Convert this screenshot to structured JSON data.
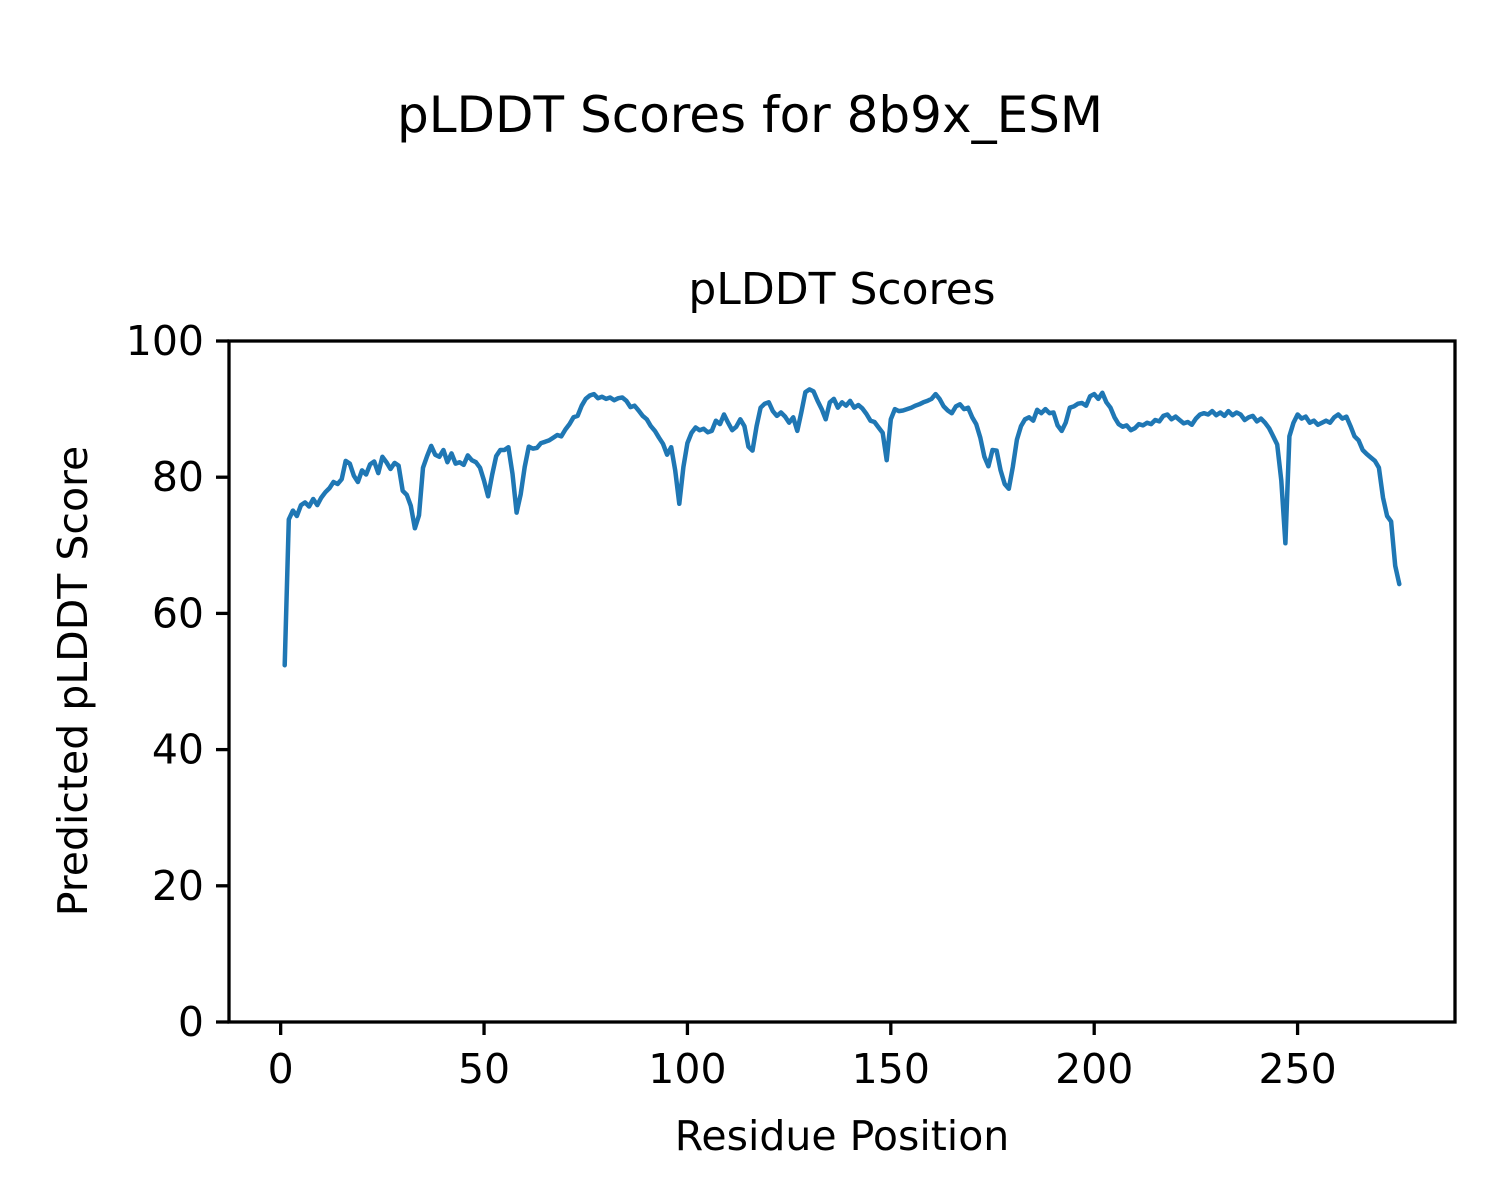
{
  "chart_data": {
    "type": "line",
    "suptitle": "pLDDT Scores for 8b9x_ESM",
    "title": "pLDDT Scores",
    "xlabel": "Residue Position",
    "ylabel": "Predicted pLDDT Score",
    "x_ticks": [
      0,
      50,
      100,
      150,
      200,
      250
    ],
    "y_ticks": [
      0,
      20,
      40,
      60,
      80,
      100
    ],
    "xlim": [
      -12.7,
      288.7
    ],
    "ylim": [
      0,
      100
    ],
    "grid": false,
    "legend": null,
    "line_color": "#1f77b4",
    "axis_color": "#000000",
    "series_name": "pLDDT",
    "x_start": 1,
    "values": [
      52.4,
      73.8,
      75.1,
      74.3,
      75.9,
      76.3,
      75.7,
      76.8,
      75.9,
      77.0,
      77.8,
      78.4,
      79.3,
      79.0,
      79.7,
      82.4,
      82.0,
      80.2,
      79.3,
      81.0,
      80.4,
      81.9,
      82.3,
      80.6,
      83.0,
      82.2,
      81.2,
      82.1,
      81.7,
      78.0,
      77.4,
      75.8,
      72.5,
      74.4,
      81.4,
      83.1,
      84.6,
      83.3,
      83.0,
      84.0,
      82.2,
      83.5,
      82.0,
      82.2,
      81.8,
      83.2,
      82.5,
      82.2,
      81.4,
      79.5,
      77.2,
      80.4,
      83.1,
      84.0,
      84.0,
      84.4,
      80.5,
      74.8,
      77.5,
      81.5,
      84.5,
      84.2,
      84.3,
      85.0,
      85.2,
      85.4,
      85.8,
      86.2,
      86.0,
      87.0,
      87.8,
      88.8,
      89.0,
      90.5,
      91.5,
      92.0,
      92.2,
      91.6,
      91.8,
      91.5,
      91.7,
      91.3,
      91.6,
      91.7,
      91.2,
      90.3,
      90.5,
      89.8,
      89.0,
      88.5,
      87.5,
      86.8,
      85.8,
      84.9,
      83.3,
      84.4,
      81.0,
      76.1,
      81.5,
      85.0,
      86.5,
      87.3,
      86.9,
      87.1,
      86.6,
      86.8,
      88.3,
      87.8,
      89.2,
      88.0,
      86.9,
      87.4,
      88.5,
      87.5,
      84.5,
      83.9,
      87.5,
      90.2,
      90.8,
      91.0,
      89.7,
      89.0,
      89.5,
      88.9,
      88.0,
      88.8,
      86.8,
      89.5,
      92.5,
      92.9,
      92.6,
      91.2,
      90.0,
      88.5,
      91.0,
      91.5,
      90.2,
      91.0,
      90.5,
      91.2,
      90.2,
      90.6,
      90.1,
      89.3,
      88.3,
      88.1,
      87.3,
      86.5,
      82.5,
      88.5,
      90.0,
      89.7,
      89.8,
      90.0,
      90.2,
      90.5,
      90.7,
      91.0,
      91.2,
      91.5,
      92.2,
      91.5,
      90.4,
      89.8,
      89.4,
      90.4,
      90.7,
      90.0,
      90.2,
      88.8,
      87.8,
      85.8,
      83.0,
      81.6,
      84.0,
      83.9,
      81.0,
      79.0,
      78.3,
      81.5,
      85.5,
      87.5,
      88.5,
      88.8,
      88.3,
      89.9,
      89.4,
      90.0,
      89.4,
      89.5,
      87.6,
      86.8,
      88.0,
      90.2,
      90.4,
      90.8,
      90.9,
      90.5,
      91.9,
      92.2,
      91.5,
      92.4,
      91.0,
      90.2,
      88.8,
      87.8,
      87.4,
      87.6,
      86.9,
      87.2,
      87.8,
      87.6,
      88.0,
      87.8,
      88.4,
      88.2,
      89.0,
      89.2,
      88.5,
      88.9,
      88.4,
      87.9,
      88.1,
      87.7,
      88.6,
      89.2,
      89.4,
      89.2,
      89.7,
      89.1,
      89.5,
      89.0,
      89.7,
      89.1,
      89.5,
      89.2,
      88.4,
      88.8,
      89.0,
      88.2,
      88.6,
      88.0,
      87.2,
      86.0,
      84.8,
      79.5,
      70.3,
      86.0,
      88.0,
      89.2,
      88.6,
      88.9,
      88.0,
      88.3,
      87.7,
      88.0,
      88.3,
      88.0,
      88.8,
      89.2,
      88.6,
      88.9,
      87.5,
      86.0,
      85.4,
      84.0,
      83.4,
      82.9,
      82.4,
      81.4,
      77.0,
      74.3,
      73.5,
      67.0,
      64.3
    ]
  }
}
